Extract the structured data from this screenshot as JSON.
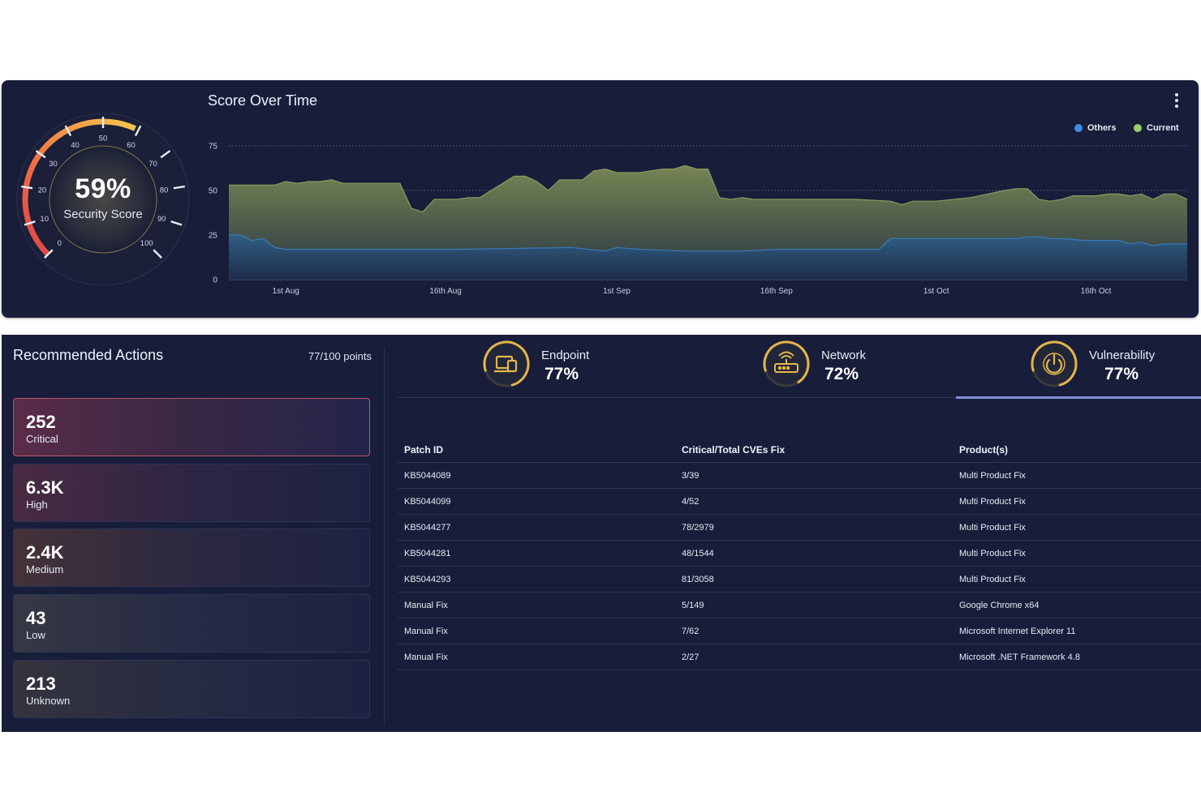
{
  "security_score": {
    "value": "59%",
    "label": "Security Score",
    "percent": 59,
    "ticks": [
      "0",
      "10",
      "20",
      "30",
      "40",
      "50",
      "60",
      "70",
      "80",
      "90",
      "100"
    ]
  },
  "score_over_time": {
    "title": "Score Over Time",
    "legend": [
      {
        "name": "Others",
        "color": "#3a8ee6"
      },
      {
        "name": "Current",
        "color": "#8fd16a"
      }
    ]
  },
  "chart_data": {
    "type": "area",
    "title": "Score Over Time",
    "ylim": [
      0,
      75
    ],
    "yticks": [
      "0",
      "25",
      "50",
      "75"
    ],
    "xlim": [
      0,
      84
    ],
    "xticks": [
      {
        "x": 5,
        "label": "1st Aug"
      },
      {
        "x": 19,
        "label": "16th Aug"
      },
      {
        "x": 34,
        "label": "1st Sep"
      },
      {
        "x": 48,
        "label": "16th Sep"
      },
      {
        "x": 62,
        "label": "1st Oct"
      },
      {
        "x": 76,
        "label": "16th Oct"
      }
    ],
    "grid": true,
    "legend_position": "top-right",
    "series": [
      {
        "name": "Current",
        "x": [
          0,
          4,
          5,
          6,
          7,
          8,
          9,
          10,
          11,
          12,
          15,
          16,
          17,
          18,
          19,
          20,
          21,
          22,
          25,
          26,
          27,
          28,
          29,
          30,
          31,
          32,
          33,
          34,
          35,
          36,
          38,
          39,
          40,
          41,
          42,
          43,
          44,
          45,
          46,
          50,
          55,
          58,
          59,
          60,
          62,
          65,
          68,
          69,
          70,
          71,
          72,
          73,
          74,
          75,
          76,
          77,
          78,
          79,
          80,
          81,
          82,
          83,
          84
        ],
        "y": [
          53,
          53,
          55,
          54,
          55,
          55,
          56,
          54,
          54,
          54,
          54,
          40,
          38,
          45,
          45,
          45,
          46,
          46,
          58,
          58,
          55,
          50,
          56,
          56,
          56,
          61,
          62,
          60,
          60,
          60,
          62,
          62,
          64,
          62,
          62,
          46,
          45,
          46,
          45,
          45,
          45,
          44,
          42,
          44,
          44,
          46,
          50,
          51,
          51,
          45,
          44,
          45,
          47,
          47,
          47,
          48,
          48,
          47,
          48,
          45,
          48,
          48,
          45
        ]
      },
      {
        "name": "Others",
        "x": [
          0,
          1,
          2,
          3,
          4,
          5,
          10,
          20,
          30,
          33,
          34,
          36,
          40,
          45,
          48,
          50,
          55,
          57,
          58,
          60,
          65,
          68,
          69,
          70,
          71,
          72,
          73,
          75,
          78,
          79,
          80,
          81,
          82,
          84
        ],
        "y": [
          25,
          25,
          22,
          23,
          18,
          17,
          17,
          17,
          18,
          16,
          18,
          17,
          16,
          16,
          17,
          17,
          17,
          17,
          23,
          23,
          23,
          23,
          23,
          24,
          24,
          23,
          23,
          22,
          22,
          20,
          21,
          19,
          20,
          20
        ]
      }
    ]
  },
  "recommended_actions": {
    "title": "Recommended Actions",
    "points": "77/100 points",
    "severities": [
      {
        "value": "252",
        "label": "Critical"
      },
      {
        "value": "6.3K",
        "label": "High"
      },
      {
        "value": "2.4K",
        "label": "Medium"
      },
      {
        "value": "43",
        "label": "Low"
      },
      {
        "value": "213",
        "label": "Unknown"
      }
    ]
  },
  "categories": [
    {
      "name": "Endpoint",
      "value": "77%",
      "percent": 77,
      "icon": "devices-icon"
    },
    {
      "name": "Network",
      "value": "72%",
      "percent": 72,
      "icon": "router-icon"
    },
    {
      "name": "Vulnerability",
      "value": "77%",
      "percent": 77,
      "icon": "power-icon",
      "active": true
    }
  ],
  "patch_table": {
    "columns": [
      "Patch ID",
      "Critical/Total CVEs Fix",
      "Product(s)"
    ],
    "rows": [
      [
        "KB5044089",
        "3/39",
        "Multi Product Fix"
      ],
      [
        "KB5044099",
        "4/52",
        "Multi Product Fix"
      ],
      [
        "KB5044277",
        "78/2979",
        "Multi Product Fix"
      ],
      [
        "KB5044281",
        "48/1544",
        "Multi Product Fix"
      ],
      [
        "KB5044293",
        "81/3058",
        "Multi Product Fix"
      ],
      [
        "Manual Fix",
        "5/149",
        "Google Chrome x64"
      ],
      [
        "Manual Fix",
        "7/62",
        "Microsoft Internet Explorer 11"
      ],
      [
        "Manual Fix",
        "2/27",
        "Microsoft .NET Framework 4.8"
      ]
    ]
  }
}
